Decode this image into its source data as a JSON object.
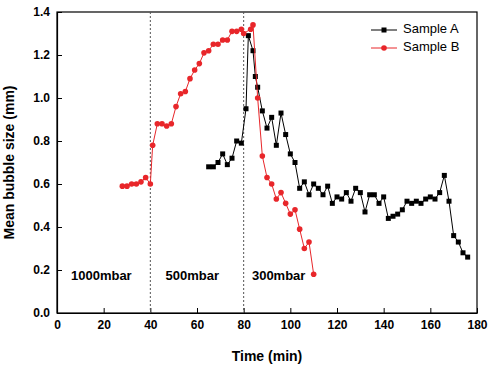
{
  "chart_data": {
    "type": "line",
    "x_label": "Time (min)",
    "y_label": "Mean bubble size (mm)",
    "xlim": [
      0,
      180
    ],
    "ylim": [
      0,
      1.4
    ],
    "xticks": [
      0,
      20,
      40,
      60,
      80,
      100,
      120,
      140,
      160,
      180
    ],
    "yticks": [
      {
        "value": 0,
        "label": "0.0"
      },
      0.2,
      0.4,
      0.6,
      0.8,
      {
        "value": 1,
        "label": "1.0"
      },
      1.2,
      1.4
    ],
    "grid": false,
    "legend": "upper right",
    "vlines": [
      40,
      80
    ],
    "annotations": [
      {
        "text": "1000mbar",
        "x": 19,
        "y": 0.17
      },
      {
        "text": "500mbar",
        "x": 58,
        "y": 0.17
      },
      {
        "text": "300mbar",
        "x": 95,
        "y": 0.17
      }
    ],
    "series": [
      {
        "name": "Sample A",
        "color": "#000000",
        "marker": "square",
        "line_style": "solid",
        "x": [
          65,
          67,
          69,
          71,
          73,
          75,
          77,
          79,
          81,
          82,
          84,
          85,
          86,
          88,
          90,
          92,
          94,
          96,
          98,
          100,
          102,
          104,
          106,
          108,
          110,
          112,
          114,
          116,
          118,
          120,
          122,
          124,
          126,
          128,
          130,
          132,
          134,
          136,
          138,
          140,
          142,
          144,
          146,
          148,
          150,
          152,
          154,
          156,
          158,
          160,
          162,
          164,
          166,
          168,
          170,
          172,
          174,
          176
        ],
        "values": [
          0.68,
          0.68,
          0.7,
          0.74,
          0.69,
          0.72,
          0.8,
          0.79,
          0.95,
          1.29,
          1.22,
          1.1,
          1.05,
          0.94,
          0.86,
          0.91,
          0.78,
          0.93,
          0.83,
          0.74,
          0.7,
          0.58,
          0.61,
          0.55,
          0.6,
          0.58,
          0.55,
          0.59,
          0.51,
          0.54,
          0.53,
          0.56,
          0.52,
          0.58,
          0.56,
          0.47,
          0.55,
          0.55,
          0.51,
          0.54,
          0.44,
          0.45,
          0.46,
          0.48,
          0.52,
          0.51,
          0.52,
          0.51,
          0.53,
          0.54,
          0.53,
          0.56,
          0.64,
          0.52,
          0.36,
          0.33,
          0.28,
          0.26
        ]
      },
      {
        "name": "Sample B",
        "color": "#e8262a",
        "marker": "circle",
        "line_style": "solid",
        "x": [
          28,
          30,
          32,
          34,
          36,
          38,
          40,
          41,
          43,
          45,
          47,
          49,
          51,
          53,
          55,
          57,
          59,
          61,
          63,
          65,
          67,
          69,
          71,
          73,
          75,
          77,
          79,
          80,
          83,
          84,
          86,
          88,
          90,
          92,
          94,
          96,
          98,
          100,
          102,
          104,
          106,
          108,
          110
        ],
        "values": [
          0.59,
          0.59,
          0.6,
          0.6,
          0.61,
          0.63,
          0.6,
          0.78,
          0.88,
          0.88,
          0.87,
          0.88,
          0.96,
          1.02,
          1.03,
          1.09,
          1.13,
          1.16,
          1.21,
          1.22,
          1.25,
          1.25,
          1.27,
          1.27,
          1.31,
          1.31,
          1.32,
          1.3,
          1.32,
          1.34,
          1.0,
          0.73,
          0.63,
          0.6,
          0.53,
          0.56,
          0.51,
          0.46,
          0.48,
          0.39,
          0.3,
          0.33,
          0.18
        ]
      }
    ]
  }
}
